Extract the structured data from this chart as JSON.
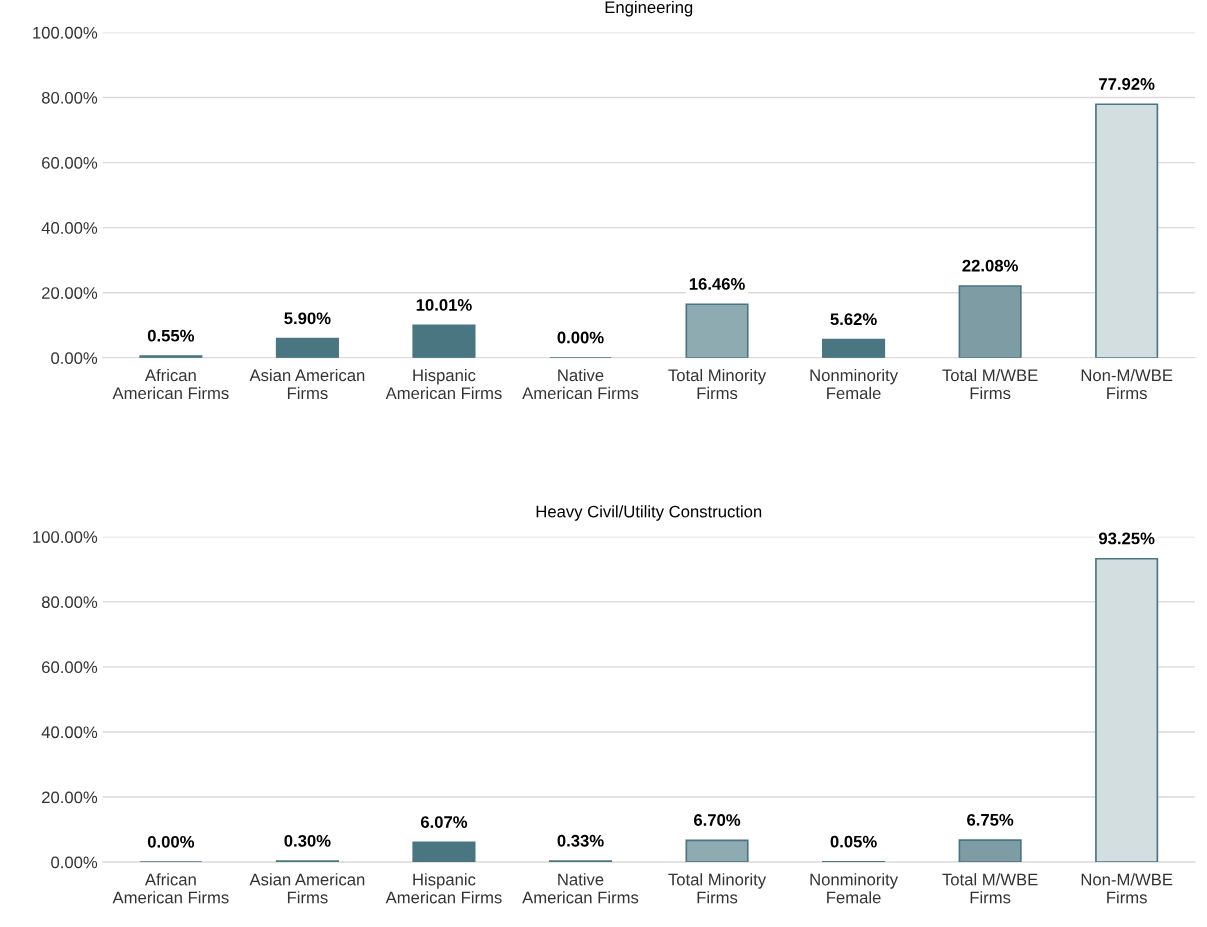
{
  "chart_data": [
    {
      "type": "bar",
      "title": "Engineering",
      "categories": [
        "African\nAmerican Firms",
        "Asian American\nFirms",
        "Hispanic\nAmerican Firms",
        "Native\nAmerican Firms",
        "Total Minority\nFirms",
        "Nonminority\nFemale",
        "Total M/WBE\nFirms",
        "Non-M/WBE\nFirms"
      ],
      "series": [
        {
          "color": "#4a7682",
          "colors": [
            "#4a7682",
            "#4a7682",
            "#4a7682",
            "#4a7682",
            "#8fabb2",
            "#4a7682",
            "#7d9ca4",
            "#d3dee1"
          ],
          "values": [
            0.55,
            5.9,
            10.01,
            0.0,
            16.46,
            5.62,
            22.08,
            77.92
          ]
        }
      ],
      "value_labels": [
        "0.55%",
        "5.90%",
        "10.01%",
        "0.00%",
        "16.46%",
        "5.62%",
        "22.08%",
        "77.92%"
      ],
      "ylim": [
        0,
        100
      ],
      "yticks": [
        {
          "value": 0,
          "label": "0.00%"
        },
        {
          "value": 20,
          "label": "20.00%"
        },
        {
          "value": 40,
          "label": "40.00%"
        },
        {
          "value": 60,
          "label": "60.00%"
        },
        {
          "value": 80,
          "label": "80.00%"
        },
        {
          "value": 100,
          "label": "100.00%"
        }
      ],
      "grid": "y",
      "legend": false
    },
    {
      "type": "bar",
      "title": "Heavy Civil/Utility Construction",
      "categories": [
        "African\nAmerican Firms",
        "Asian American\nFirms",
        "Hispanic\nAmerican Firms",
        "Native\nAmerican Firms",
        "Total Minority\nFirms",
        "Nonminority\nFemale",
        "Total M/WBE\nFirms",
        "Non-M/WBE\nFirms"
      ],
      "series": [
        {
          "color": "#4a7682",
          "colors": [
            "#4a7682",
            "#4a7682",
            "#4a7682",
            "#4a7682",
            "#8fabb2",
            "#4a7682",
            "#7d9ca4",
            "#d3dee1"
          ],
          "values": [
            0.0,
            0.3,
            6.07,
            0.33,
            6.7,
            0.05,
            6.75,
            93.25
          ]
        }
      ],
      "value_labels": [
        "0.00%",
        "0.30%",
        "6.07%",
        "0.33%",
        "6.70%",
        "0.05%",
        "6.75%",
        "93.25%"
      ],
      "ylim": [
        0,
        100
      ],
      "yticks": [
        {
          "value": 0,
          "label": "0.00%"
        },
        {
          "value": 20,
          "label": "20.00%"
        },
        {
          "value": 40,
          "label": "40.00%"
        },
        {
          "value": 60,
          "label": "60.00%"
        },
        {
          "value": 80,
          "label": "80.00%"
        },
        {
          "value": 100,
          "label": "100.00%"
        }
      ],
      "grid": "y",
      "legend": false
    }
  ]
}
